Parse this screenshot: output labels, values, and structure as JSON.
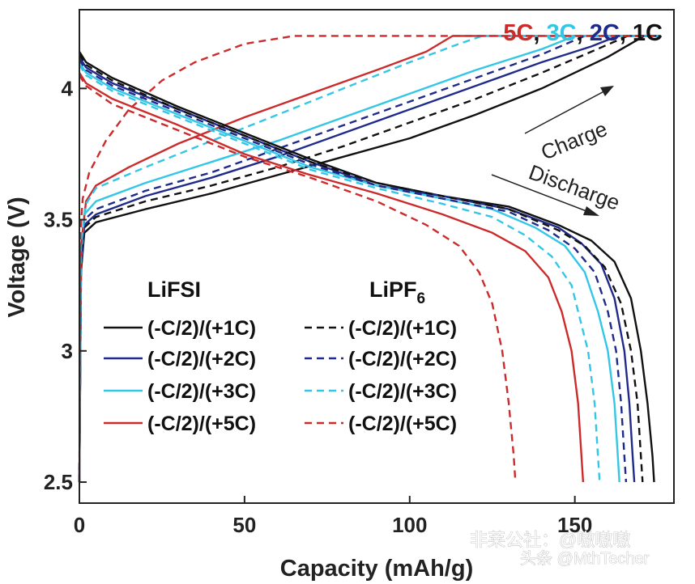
{
  "chart_data": {
    "type": "line",
    "title": "",
    "xlabel": "Capacity (mAh/g)",
    "ylabel": "Voltage (V)",
    "xlim": [
      0,
      180
    ],
    "ylim": [
      2.42,
      4.3
    ],
    "xticks": [
      0,
      50,
      100,
      150
    ],
    "yticks": [
      2.5,
      3,
      3.5,
      4
    ],
    "xtick_labels": [
      "0",
      "50",
      "100",
      "150"
    ],
    "ytick_labels": [
      "2.5",
      "3",
      "3.5",
      "4"
    ],
    "grid": false,
    "rate_labels": [
      {
        "text": "5C",
        "color": "#cc2b2b"
      },
      {
        "text": ", ",
        "color": "#111111"
      },
      {
        "text": "3C",
        "color": "#34c6e6"
      },
      {
        "text": ", ",
        "color": "#111111"
      },
      {
        "text": "2C",
        "color": "#1f2a8a"
      },
      {
        "text": ", 1C",
        "color": "#111111"
      }
    ],
    "annotations": {
      "charge": "Charge",
      "discharge": "Discharge"
    },
    "legend": {
      "placement": "bottom-left",
      "col1_title": "LiFSI",
      "col2_title": "LiPF",
      "col2_subscript": "6",
      "entries": [
        {
          "label": "(-C/2)/(+1C)",
          "color": "#111111"
        },
        {
          "label": "(-C/2)/(+2C)",
          "color": "#1f2a8a"
        },
        {
          "label": "(-C/2)/(+3C)",
          "color": "#34c6e6"
        },
        {
          "label": "(-C/2)/(+5C)",
          "color": "#cc2b2b"
        }
      ]
    },
    "series": [
      {
        "name": "LiFSI charge 1C",
        "electrolyte": "LiFSI",
        "phase": "charge",
        "rate": "1C",
        "color": "#111111",
        "dash": false,
        "points": [
          [
            0,
            2.5
          ],
          [
            0.5,
            3.3
          ],
          [
            1.5,
            3.45
          ],
          [
            5,
            3.49
          ],
          [
            20,
            3.54
          ],
          [
            40,
            3.6
          ],
          [
            60,
            3.67
          ],
          [
            80,
            3.74
          ],
          [
            100,
            3.81
          ],
          [
            120,
            3.9
          ],
          [
            140,
            4.0
          ],
          [
            160,
            4.12
          ],
          [
            171,
            4.2
          ],
          [
            176,
            4.2
          ]
        ]
      },
      {
        "name": "LiFSI charge 2C",
        "electrolyte": "LiFSI",
        "phase": "charge",
        "rate": "2C",
        "color": "#1f2a8a",
        "dash": false,
        "points": [
          [
            0,
            2.5
          ],
          [
            0.5,
            3.3
          ],
          [
            1.5,
            3.48
          ],
          [
            5,
            3.52
          ],
          [
            20,
            3.59
          ],
          [
            40,
            3.66
          ],
          [
            60,
            3.74
          ],
          [
            80,
            3.83
          ],
          [
            100,
            3.92
          ],
          [
            120,
            4.01
          ],
          [
            140,
            4.1
          ],
          [
            155,
            4.16
          ],
          [
            163,
            4.2
          ],
          [
            176,
            4.2
          ]
        ]
      },
      {
        "name": "LiFSI charge 3C",
        "electrolyte": "LiFSI",
        "phase": "charge",
        "rate": "3C",
        "color": "#34c6e6",
        "dash": false,
        "points": [
          [
            0,
            2.5
          ],
          [
            0.5,
            3.35
          ],
          [
            1.5,
            3.52
          ],
          [
            5,
            3.57
          ],
          [
            20,
            3.64
          ],
          [
            40,
            3.72
          ],
          [
            60,
            3.8
          ],
          [
            80,
            3.89
          ],
          [
            100,
            3.98
          ],
          [
            120,
            4.07
          ],
          [
            140,
            4.15
          ],
          [
            150,
            4.2
          ],
          [
            176,
            4.2
          ]
        ]
      },
      {
        "name": "LiFSI charge 5C",
        "electrolyte": "LiFSI",
        "phase": "charge",
        "rate": "5C",
        "color": "#cc2b2b",
        "dash": false,
        "points": [
          [
            0,
            2.5
          ],
          [
            0.5,
            3.4
          ],
          [
            2,
            3.57
          ],
          [
            5,
            3.63
          ],
          [
            15,
            3.7
          ],
          [
            30,
            3.79
          ],
          [
            50,
            3.89
          ],
          [
            70,
            3.98
          ],
          [
            90,
            4.07
          ],
          [
            105,
            4.14
          ],
          [
            113,
            4.2
          ],
          [
            176,
            4.2
          ]
        ]
      },
      {
        "name": "LiPF6 charge 1C",
        "electrolyte": "LiPF6",
        "phase": "charge",
        "rate": "1C",
        "color": "#111111",
        "dash": true,
        "points": [
          [
            0,
            2.5
          ],
          [
            0.5,
            3.35
          ],
          [
            1.5,
            3.47
          ],
          [
            5,
            3.51
          ],
          [
            20,
            3.57
          ],
          [
            40,
            3.63
          ],
          [
            60,
            3.7
          ],
          [
            80,
            3.78
          ],
          [
            100,
            3.87
          ],
          [
            120,
            3.96
          ],
          [
            140,
            4.06
          ],
          [
            155,
            4.14
          ],
          [
            166,
            4.2
          ],
          [
            176,
            4.2
          ]
        ]
      },
      {
        "name": "LiPF6 charge 2C",
        "electrolyte": "LiPF6",
        "phase": "charge",
        "rate": "2C",
        "color": "#1f2a8a",
        "dash": true,
        "points": [
          [
            0,
            2.5
          ],
          [
            0.5,
            3.35
          ],
          [
            1.5,
            3.5
          ],
          [
            5,
            3.54
          ],
          [
            20,
            3.61
          ],
          [
            40,
            3.68
          ],
          [
            60,
            3.77
          ],
          [
            80,
            3.86
          ],
          [
            100,
            3.95
          ],
          [
            120,
            4.04
          ],
          [
            140,
            4.13
          ],
          [
            153,
            4.2
          ],
          [
            176,
            4.2
          ]
        ]
      },
      {
        "name": "LiPF6 charge 3C",
        "electrolyte": "LiPF6",
        "phase": "charge",
        "rate": "3C",
        "color": "#34c6e6",
        "dash": true,
        "points": [
          [
            0,
            2.5
          ],
          [
            0.5,
            3.4
          ],
          [
            2,
            3.56
          ],
          [
            5,
            3.62
          ],
          [
            20,
            3.7
          ],
          [
            40,
            3.8
          ],
          [
            60,
            3.9
          ],
          [
            80,
            4.0
          ],
          [
            100,
            4.1
          ],
          [
            115,
            4.17
          ],
          [
            122,
            4.2
          ],
          [
            176,
            4.2
          ]
        ]
      },
      {
        "name": "LiPF6 charge 5C",
        "electrolyte": "LiPF6",
        "phase": "charge",
        "rate": "5C",
        "color": "#cc2b2b",
        "dash": true,
        "points": [
          [
            0,
            2.5
          ],
          [
            0.3,
            3.45
          ],
          [
            1,
            3.58
          ],
          [
            3,
            3.68
          ],
          [
            8,
            3.8
          ],
          [
            15,
            3.92
          ],
          [
            25,
            4.03
          ],
          [
            35,
            4.1
          ],
          [
            50,
            4.17
          ],
          [
            65,
            4.2
          ],
          [
            176,
            4.2
          ]
        ]
      },
      {
        "name": "LiFSI discharge 1C",
        "electrolyte": "LiFSI",
        "phase": "discharge",
        "rate": "1C",
        "color": "#111111",
        "dash": false,
        "points": [
          [
            0,
            4.14
          ],
          [
            2,
            4.1
          ],
          [
            10,
            4.04
          ],
          [
            30,
            3.93
          ],
          [
            50,
            3.83
          ],
          [
            70,
            3.73
          ],
          [
            90,
            3.64
          ],
          [
            110,
            3.59
          ],
          [
            130,
            3.55
          ],
          [
            145,
            3.48
          ],
          [
            155,
            3.42
          ],
          [
            162,
            3.34
          ],
          [
            167,
            3.2
          ],
          [
            170,
            3.0
          ],
          [
            172,
            2.8
          ],
          [
            173.5,
            2.6
          ],
          [
            174,
            2.5
          ]
        ]
      },
      {
        "name": "LiFSI discharge 2C",
        "electrolyte": "LiFSI",
        "phase": "discharge",
        "rate": "2C",
        "color": "#1f2a8a",
        "dash": false,
        "points": [
          [
            0,
            4.12
          ],
          [
            2,
            4.08
          ],
          [
            10,
            4.02
          ],
          [
            30,
            3.92
          ],
          [
            50,
            3.82
          ],
          [
            70,
            3.72
          ],
          [
            90,
            3.63
          ],
          [
            110,
            3.59
          ],
          [
            130,
            3.54
          ],
          [
            145,
            3.47
          ],
          [
            152,
            3.41
          ],
          [
            158,
            3.33
          ],
          [
            162,
            3.2
          ],
          [
            165,
            3.0
          ],
          [
            166.5,
            2.8
          ],
          [
            167.5,
            2.6
          ],
          [
            168,
            2.5
          ]
        ]
      },
      {
        "name": "LiFSI discharge 3C",
        "electrolyte": "LiFSI",
        "phase": "discharge",
        "rate": "3C",
        "color": "#34c6e6",
        "dash": false,
        "points": [
          [
            0,
            4.1
          ],
          [
            2,
            4.06
          ],
          [
            10,
            4.0
          ],
          [
            30,
            3.9
          ],
          [
            50,
            3.8
          ],
          [
            70,
            3.7
          ],
          [
            90,
            3.63
          ],
          [
            110,
            3.58
          ],
          [
            125,
            3.54
          ],
          [
            138,
            3.47
          ],
          [
            147,
            3.4
          ],
          [
            153,
            3.3
          ],
          [
            157,
            3.15
          ],
          [
            160,
            3.0
          ],
          [
            162,
            2.8
          ],
          [
            163,
            2.6
          ],
          [
            163.5,
            2.5
          ]
        ]
      },
      {
        "name": "LiFSI discharge 5C",
        "electrolyte": "LiFSI",
        "phase": "discharge",
        "rate": "5C",
        "color": "#cc2b2b",
        "dash": false,
        "points": [
          [
            0,
            4.06
          ],
          [
            2,
            4.02
          ],
          [
            10,
            3.96
          ],
          [
            30,
            3.86
          ],
          [
            50,
            3.75
          ],
          [
            70,
            3.67
          ],
          [
            90,
            3.6
          ],
          [
            110,
            3.52
          ],
          [
            125,
            3.45
          ],
          [
            135,
            3.38
          ],
          [
            142,
            3.28
          ],
          [
            146,
            3.15
          ],
          [
            149,
            3.0
          ],
          [
            151,
            2.8
          ],
          [
            152,
            2.6
          ],
          [
            152.5,
            2.5
          ]
        ]
      },
      {
        "name": "LiPF6 discharge 1C",
        "electrolyte": "LiPF6",
        "phase": "discharge",
        "rate": "1C",
        "color": "#111111",
        "dash": true,
        "points": [
          [
            0,
            4.13
          ],
          [
            2,
            4.09
          ],
          [
            10,
            4.03
          ],
          [
            30,
            3.92
          ],
          [
            50,
            3.82
          ],
          [
            70,
            3.72
          ],
          [
            90,
            3.64
          ],
          [
            110,
            3.59
          ],
          [
            130,
            3.54
          ],
          [
            145,
            3.46
          ],
          [
            153,
            3.4
          ],
          [
            159,
            3.32
          ],
          [
            164,
            3.18
          ],
          [
            167,
            3.0
          ],
          [
            169,
            2.8
          ],
          [
            170,
            2.6
          ],
          [
            170.5,
            2.5
          ]
        ]
      },
      {
        "name": "LiPF6 discharge 2C",
        "electrolyte": "LiPF6",
        "phase": "discharge",
        "rate": "2C",
        "color": "#1f2a8a",
        "dash": true,
        "points": [
          [
            0,
            4.11
          ],
          [
            2,
            4.07
          ],
          [
            10,
            4.01
          ],
          [
            30,
            3.91
          ],
          [
            50,
            3.81
          ],
          [
            70,
            3.71
          ],
          [
            90,
            3.63
          ],
          [
            110,
            3.58
          ],
          [
            130,
            3.53
          ],
          [
            142,
            3.46
          ],
          [
            150,
            3.39
          ],
          [
            156,
            3.3
          ],
          [
            160,
            3.15
          ],
          [
            162.5,
            3.0
          ],
          [
            164,
            2.8
          ],
          [
            165,
            2.6
          ],
          [
            165.5,
            2.5
          ]
        ]
      },
      {
        "name": "LiPF6 discharge 3C",
        "electrolyte": "LiPF6",
        "phase": "discharge",
        "rate": "3C",
        "color": "#34c6e6",
        "dash": true,
        "points": [
          [
            0,
            4.09
          ],
          [
            2,
            4.05
          ],
          [
            10,
            3.99
          ],
          [
            30,
            3.89
          ],
          [
            50,
            3.79
          ],
          [
            70,
            3.69
          ],
          [
            90,
            3.62
          ],
          [
            110,
            3.56
          ],
          [
            125,
            3.51
          ],
          [
            135,
            3.44
          ],
          [
            143,
            3.36
          ],
          [
            149,
            3.25
          ],
          [
            152,
            3.1
          ],
          [
            154,
            3.0
          ],
          [
            156,
            2.8
          ],
          [
            157,
            2.6
          ],
          [
            157.5,
            2.5
          ]
        ]
      },
      {
        "name": "LiPF6 discharge 5C",
        "electrolyte": "LiPF6",
        "phase": "discharge",
        "rate": "5C",
        "color": "#cc2b2b",
        "dash": true,
        "points": [
          [
            0,
            4.05
          ],
          [
            2,
            4.01
          ],
          [
            10,
            3.94
          ],
          [
            30,
            3.84
          ],
          [
            50,
            3.74
          ],
          [
            70,
            3.66
          ],
          [
            90,
            3.57
          ],
          [
            105,
            3.48
          ],
          [
            115,
            3.4
          ],
          [
            121,
            3.3
          ],
          [
            125,
            3.18
          ],
          [
            128,
            3.0
          ],
          [
            130,
            2.8
          ],
          [
            131.5,
            2.6
          ],
          [
            132,
            2.5
          ]
        ]
      }
    ]
  },
  "watermark": {
    "line1": "非莱公社：@嗷嗷嗷",
    "line2": "头条 @MthTecher"
  }
}
